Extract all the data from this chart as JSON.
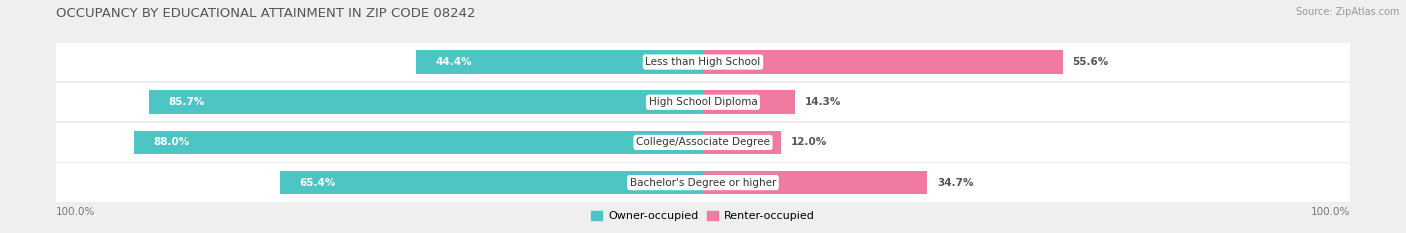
{
  "title": "OCCUPANCY BY EDUCATIONAL ATTAINMENT IN ZIP CODE 08242",
  "source": "Source: ZipAtlas.com",
  "categories": [
    "Less than High School",
    "High School Diploma",
    "College/Associate Degree",
    "Bachelor's Degree or higher"
  ],
  "owner_pct": [
    44.4,
    85.7,
    88.0,
    65.4
  ],
  "renter_pct": [
    55.6,
    14.3,
    12.0,
    34.7
  ],
  "owner_color": "#4ec5c5",
  "renter_color": "#f07aa0",
  "row_bg_color": "#f5f5f5",
  "background_color": "#efefef",
  "bar_bg_color": "#e8e8e8",
  "title_fontsize": 9.5,
  "label_fontsize": 7.5,
  "pct_fontsize": 7.5,
  "source_fontsize": 7.0,
  "legend_fontsize": 8.0,
  "axis_label_fontsize": 7.5
}
